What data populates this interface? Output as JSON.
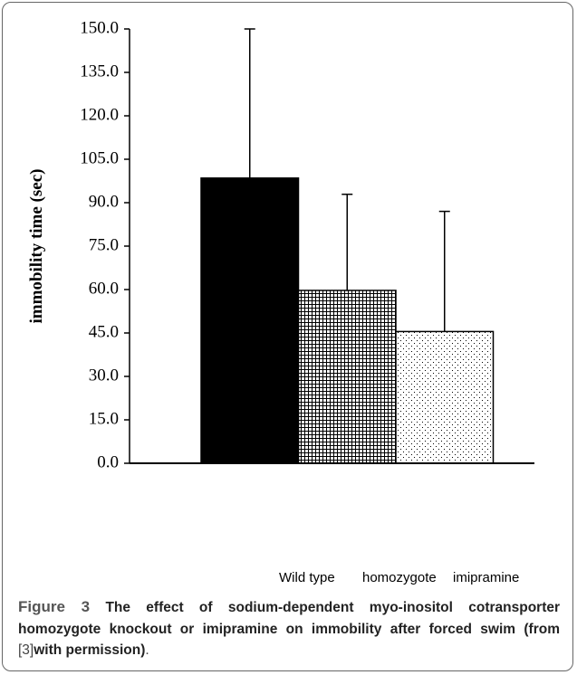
{
  "chart_data": {
    "type": "bar",
    "y_label": "immobility time (sec)",
    "categories": [
      "Wild type",
      "homozygote",
      "imipramine"
    ],
    "values": [
      98.5,
      59.7,
      45.5
    ],
    "errors": [
      51.5,
      33.2,
      41.5
    ],
    "colors": [
      "#000000",
      "grid",
      "dots"
    ],
    "ylim": [
      0,
      150
    ],
    "yticks": [
      {
        "value": 0,
        "label": "0.0"
      },
      {
        "value": 15,
        "label": "15.0"
      },
      {
        "value": 30,
        "label": "30.0"
      },
      {
        "value": 45,
        "label": "45.0"
      },
      {
        "value": 60,
        "label": "60.0"
      },
      {
        "value": 75,
        "label": "75.0"
      },
      {
        "value": 90,
        "label": "90.0"
      },
      {
        "value": 105,
        "label": "105.0"
      },
      {
        "value": 120,
        "label": "120.0"
      },
      {
        "value": 135,
        "label": "135.0"
      },
      {
        "value": 150,
        "label": "150.0"
      }
    ]
  },
  "caption": {
    "label": "Figure 3",
    "text": "The effect of sodium-dependent myo-inositol cotransporter homozygote knockout or imipramine on immobility after forced swim (from",
    "ref": "[3]",
    "text_after": "with permission)",
    "end": "."
  }
}
